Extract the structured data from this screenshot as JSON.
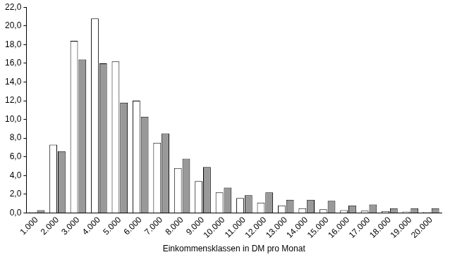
{
  "chart_data": {
    "type": "bar",
    "x_label": "Einkommensklassen in DM pro Monat",
    "categories": [
      "1.000",
      "2.000",
      "3.000",
      "4.000",
      "5.000",
      "6.000",
      "7.000",
      "8.000",
      "9.000",
      "10.000",
      "11.000",
      "12.000",
      "13.000",
      "14.000",
      "15.000",
      "16.000",
      "17.000",
      "18.000",
      "19.000",
      "20.000"
    ],
    "series": [
      {
        "color": "#ffffff",
        "values": [
          0.1,
          7.3,
          18.4,
          20.8,
          16.2,
          12.0,
          7.5,
          4.8,
          3.4,
          2.2,
          1.6,
          1.1,
          0.8,
          0.5,
          0.4,
          0.3,
          0.25,
          0.2,
          0.15,
          0.1
        ]
      },
      {
        "color": "#999999",
        "values": [
          0.3,
          6.6,
          16.4,
          16.0,
          11.8,
          10.3,
          8.5,
          5.8,
          4.9,
          2.7,
          1.9,
          2.2,
          1.4,
          1.4,
          1.3,
          0.8,
          0.9,
          0.5,
          0.5,
          0.5
        ]
      }
    ],
    "ylim": [
      0,
      22
    ],
    "yticks": [
      {
        "value": 0,
        "label": "0,0"
      },
      {
        "value": 2,
        "label": "2,0"
      },
      {
        "value": 4,
        "label": "4,0"
      },
      {
        "value": 6,
        "label": "6,0"
      },
      {
        "value": 8,
        "label": "8,0"
      },
      {
        "value": 10,
        "label": "10,0"
      },
      {
        "value": 12,
        "label": "12,0"
      },
      {
        "value": 14,
        "label": "14,0"
      },
      {
        "value": 16,
        "label": "16,0"
      },
      {
        "value": 18,
        "label": "18,0"
      },
      {
        "value": 20,
        "label": "20,0"
      },
      {
        "value": 22,
        "label": "22,0"
      }
    ],
    "grid": false
  }
}
